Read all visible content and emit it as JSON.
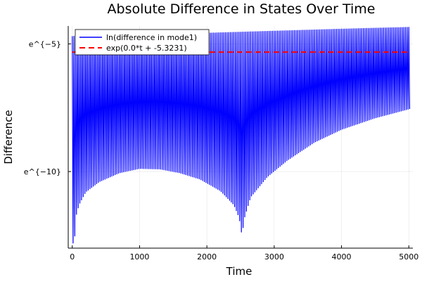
{
  "chart_data": {
    "type": "line",
    "title": "Absolute Difference in States Over Time",
    "xlabel": "Time",
    "ylabel": "Difference",
    "x_ticks": [
      {
        "value": 0,
        "label": "0"
      },
      {
        "value": 1000,
        "label": "1000"
      },
      {
        "value": 2000,
        "label": "2000"
      },
      {
        "value": 3000,
        "label": "3000"
      },
      {
        "value": 4000,
        "label": "4000"
      },
      {
        "value": 5000,
        "label": "5000"
      }
    ],
    "y_ticks": [
      {
        "value": -5,
        "label": "e^{−5}"
      },
      {
        "value": -10,
        "label": "e^{−10}"
      }
    ],
    "xlim": [
      -60,
      5060
    ],
    "ylim": [
      -13,
      -4.3
    ],
    "grid": true,
    "legend_position": "top-left",
    "series": [
      {
        "name": "ln(difference in mode1)",
        "style": "solid",
        "color": "#0000ff",
        "oscillation": {
          "period": 25,
          "t_start": 0,
          "t_end": 5000,
          "upper_envelope": [
            [
              0,
              -4.7
            ],
            [
              1000,
              -4.65
            ],
            [
              2000,
              -4.58
            ],
            [
              3000,
              -4.5
            ],
            [
              4000,
              -4.42
            ],
            [
              5000,
              -4.35
            ]
          ],
          "lower_envelope": [
            [
              0,
              -12.8
            ],
            [
              30,
              -12.8
            ],
            [
              60,
              -11.7
            ],
            [
              100,
              -11.3
            ],
            [
              200,
              -10.8
            ],
            [
              400,
              -10.4
            ],
            [
              700,
              -10.05
            ],
            [
              1000,
              -9.88
            ],
            [
              1300,
              -9.9
            ],
            [
              1600,
              -10.05
            ],
            [
              1900,
              -10.3
            ],
            [
              2200,
              -10.75
            ],
            [
              2400,
              -11.3
            ],
            [
              2480,
              -11.8
            ],
            [
              2520,
              -12.5
            ],
            [
              2560,
              -11.8
            ],
            [
              2650,
              -11.0
            ],
            [
              2900,
              -10.2
            ],
            [
              3200,
              -9.55
            ],
            [
              3600,
              -8.85
            ],
            [
              4000,
              -8.35
            ],
            [
              4500,
              -7.9
            ],
            [
              5000,
              -7.55
            ]
          ]
        }
      },
      {
        "name": "exp(0.0*t + -5.3231)",
        "style": "dashed",
        "color": "#ff0000",
        "x": [
          0,
          5000
        ],
        "y": [
          -5.3231,
          -5.3231
        ]
      }
    ]
  }
}
